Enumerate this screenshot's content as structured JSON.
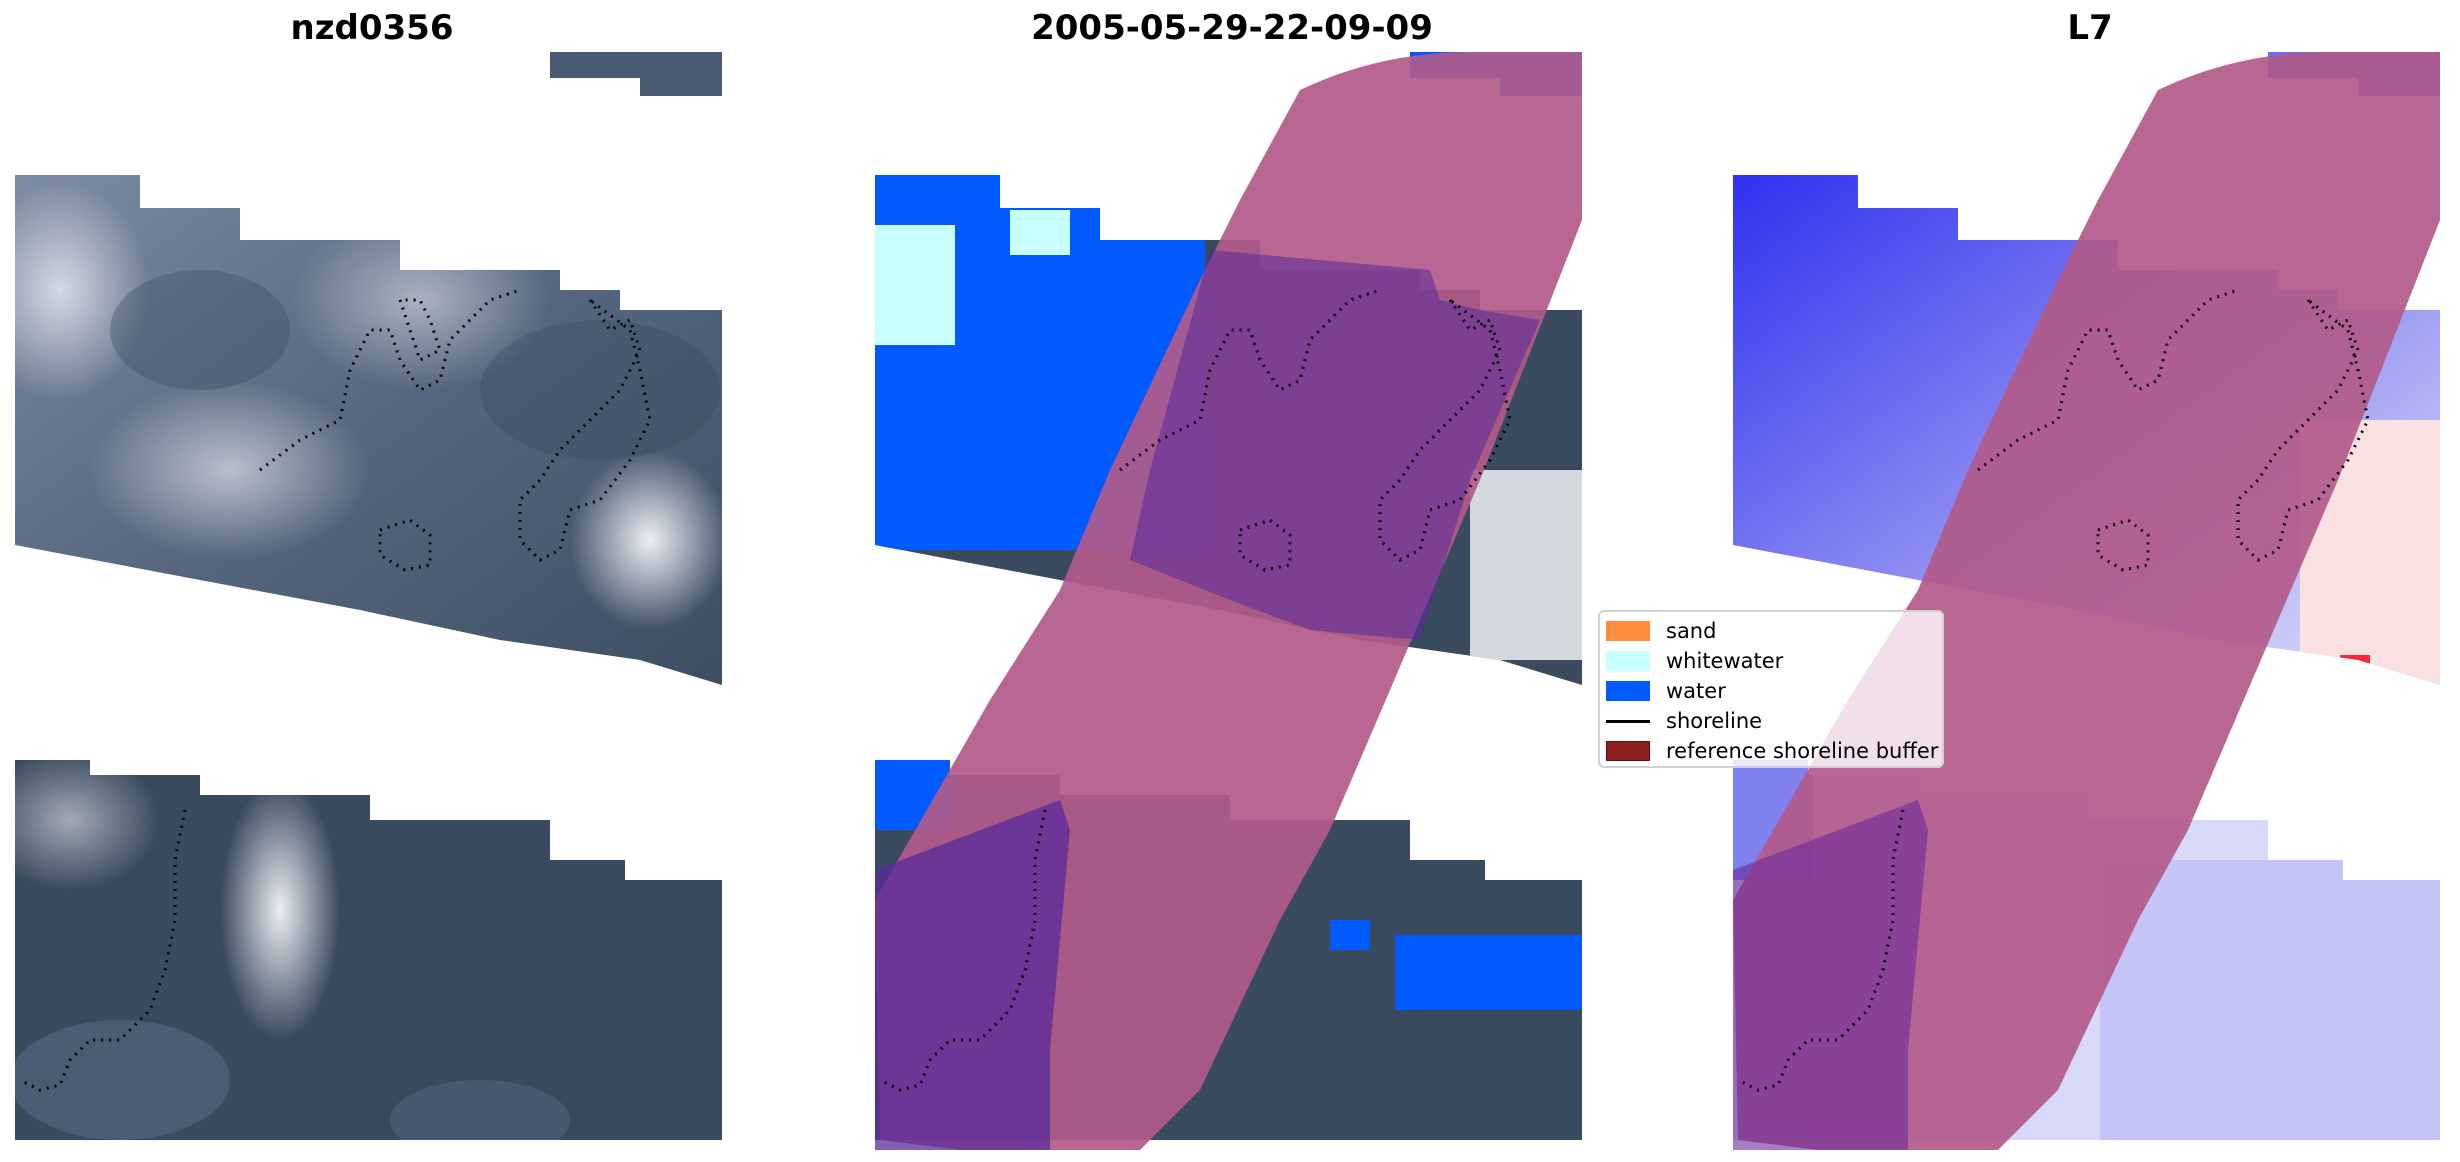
{
  "panels": {
    "image_title": "nzd0356",
    "classification_title": "2005-05-29-22-09-09",
    "mndwi_title": "L7"
  },
  "legend": {
    "items": [
      {
        "label": "sand",
        "color": "#ff8c3c",
        "kind": "patch"
      },
      {
        "label": "whitewater",
        "color": "#c8ffff",
        "kind": "patch"
      },
      {
        "label": "water",
        "color": "#005aff",
        "kind": "patch"
      },
      {
        "label": "shoreline",
        "color": "#000000",
        "kind": "line"
      },
      {
        "label": "reference shoreline buffer",
        "color": "#8b1e1e",
        "kind": "patch"
      }
    ]
  },
  "colors": {
    "satellite_dark": "#3a4a5e",
    "satellite_light": "#c9d2e0",
    "cloud": "#f2f4f8",
    "buffer_overlay": "#b25a8a",
    "buffer_over_water": "#5a2a9a",
    "mndwi_blue": "#3c3cf0",
    "mndwi_red": "#f02a3a"
  }
}
